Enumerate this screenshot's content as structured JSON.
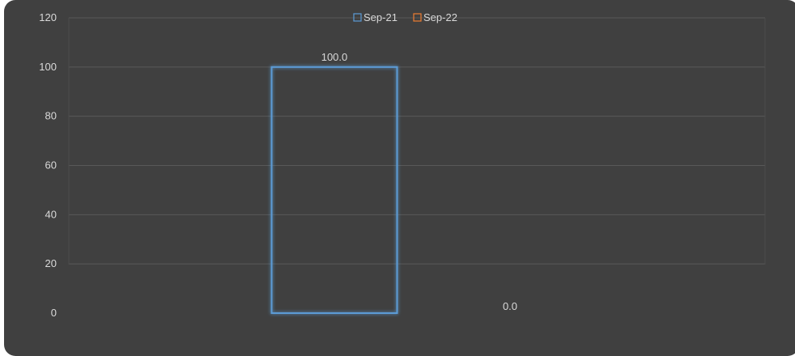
{
  "chart_data": {
    "type": "bar",
    "categories": [
      ""
    ],
    "series": [
      {
        "name": "Sep-21",
        "values": [
          100.0
        ],
        "color": "#5b9bd5",
        "data_labels": [
          "100.0"
        ]
      },
      {
        "name": "Sep-22",
        "values": [
          0.0
        ],
        "color": "#ed7d31",
        "data_labels": [
          "0.0"
        ]
      }
    ],
    "title": "",
    "xlabel": "",
    "ylabel": "",
    "ylim": [
      0,
      120
    ],
    "yticks": [
      0,
      20,
      40,
      60,
      80,
      100,
      120
    ],
    "ytick_labels": [
      "0",
      "20",
      "40",
      "60",
      "80",
      "100",
      "120"
    ],
    "grid": true,
    "legend_position": "top-center",
    "bar_style": "outline-glow",
    "background_color": "#404040"
  }
}
